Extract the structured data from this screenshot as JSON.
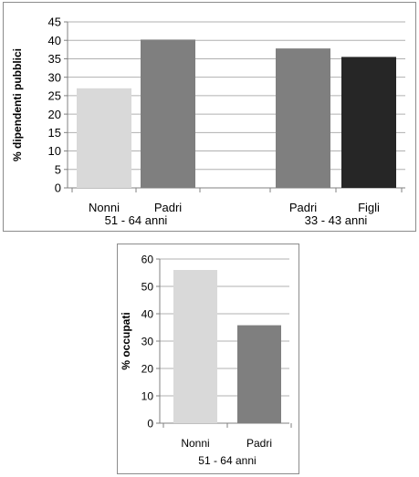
{
  "chart_data": [
    {
      "type": "bar",
      "title": "",
      "ylabel": "% dipendenti pubblici",
      "xlabel": "",
      "ylim": [
        0,
        45
      ],
      "yticks": [
        0,
        5,
        10,
        15,
        20,
        25,
        30,
        35,
        40,
        45
      ],
      "grid": true,
      "groups": [
        {
          "label": "51 - 64 anni",
          "bars": [
            {
              "category": "Nonni",
              "value": 27,
              "color": "#d9d9d9"
            },
            {
              "category": "Padri",
              "value": 40.2,
              "color": "#7f7f7f"
            }
          ]
        },
        {
          "label": "33 - 43 anni",
          "bars": [
            {
              "category": "Padri",
              "value": 37.8,
              "color": "#7f7f7f"
            },
            {
              "category": "Figli",
              "value": 35.5,
              "color": "#262626"
            }
          ]
        }
      ]
    },
    {
      "type": "bar",
      "title": "",
      "ylabel": "% occupati",
      "xlabel": "",
      "ylim": [
        0,
        60
      ],
      "yticks": [
        0,
        10,
        20,
        30,
        40,
        50,
        60
      ],
      "grid": true,
      "groups": [
        {
          "label": "51 - 64 anni",
          "bars": [
            {
              "category": "Nonni",
              "value": 56,
              "color": "#d9d9d9"
            },
            {
              "category": "Padri",
              "value": 35.8,
              "color": "#7f7f7f"
            }
          ]
        }
      ]
    }
  ]
}
